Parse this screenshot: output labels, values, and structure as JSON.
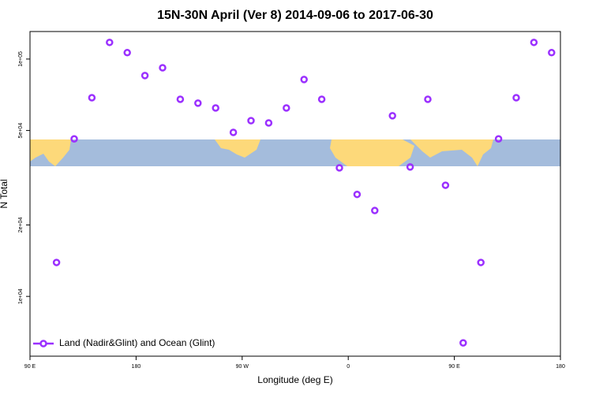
{
  "chart_data": {
    "type": "scatter",
    "title": "15N-30N April (Ver 8)   2014-09-06 to 2017-06-30",
    "x_label": "Longitude (deg E)",
    "y_label": "N Total",
    "x": [
      112.5,
      127.5,
      142.5,
      157.5,
      172.5,
      187.5,
      202.5,
      217.5,
      232.5,
      247.5,
      262.5,
      277.5,
      292.5,
      307.5,
      322.5,
      337.5,
      352.5,
      367.5,
      382.5,
      397.5,
      412.5,
      427.5,
      442.5,
      457.5,
      472.5,
      487.5,
      502.5,
      517.5,
      532.5
    ],
    "series": [
      {
        "name": "Land (Nadir&Glint) and Ocean (Glint)",
        "color": "#9b30ff",
        "values": [
          13900,
          46100,
          68700,
          117500,
          106400,
          85200,
          91900,
          67700,
          65200,
          62200,
          49100,
          55000,
          53800,
          62200,
          82000,
          67700,
          34800,
          26900,
          23000,
          57700,
          35100,
          67700,
          29400,
          6370,
          13900,
          46100,
          68700,
          117500,
          106400
        ]
      }
    ],
    "xlim": [
      90,
      540
    ],
    "xticks": [
      {
        "value": 90,
        "label": "90 E"
      },
      {
        "value": 180,
        "label": "180"
      },
      {
        "value": 270,
        "label": "90 W"
      },
      {
        "value": 360,
        "label": "0"
      },
      {
        "value": 450,
        "label": "90 E"
      },
      {
        "value": 540,
        "label": "180"
      }
    ],
    "ylim": [
      5600,
      130600
    ],
    "y_log": true,
    "yticks": [
      {
        "value": 10000,
        "label": "1e+04"
      },
      {
        "value": 20000,
        "label": "2e+04"
      },
      {
        "value": 50000,
        "label": "5e+04"
      },
      {
        "value": 100000,
        "label": "1e+05"
      }
    ],
    "legend": "bottomleft"
  }
}
